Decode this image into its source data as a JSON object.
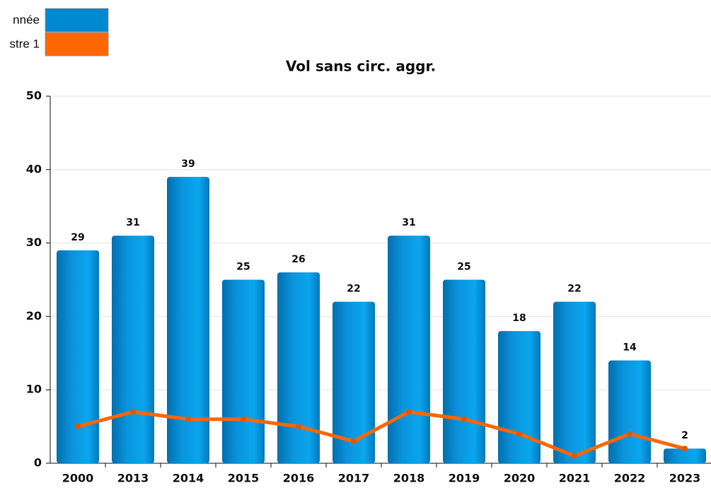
{
  "chart_data": {
    "type": "bar",
    "title": "Vol sans circ. aggr.",
    "categories": [
      "2000",
      "2013",
      "2014",
      "2015",
      "2016",
      "2017",
      "2018",
      "2019",
      "2020",
      "2021",
      "2022",
      "2023"
    ],
    "series": [
      {
        "name": "nnée",
        "color": "#0088d0",
        "values": [
          29,
          31,
          39,
          25,
          26,
          22,
          31,
          25,
          18,
          22,
          14,
          2
        ]
      },
      {
        "name": "stre 1",
        "color": "#ff6600",
        "type": "line",
        "values": [
          5,
          7,
          6,
          6,
          5,
          3,
          7,
          6,
          4,
          1,
          4,
          2
        ]
      }
    ],
    "ylim": [
      0,
      50
    ],
    "yticks": [
      0,
      10,
      20,
      30,
      40,
      50
    ],
    "grid": true
  }
}
